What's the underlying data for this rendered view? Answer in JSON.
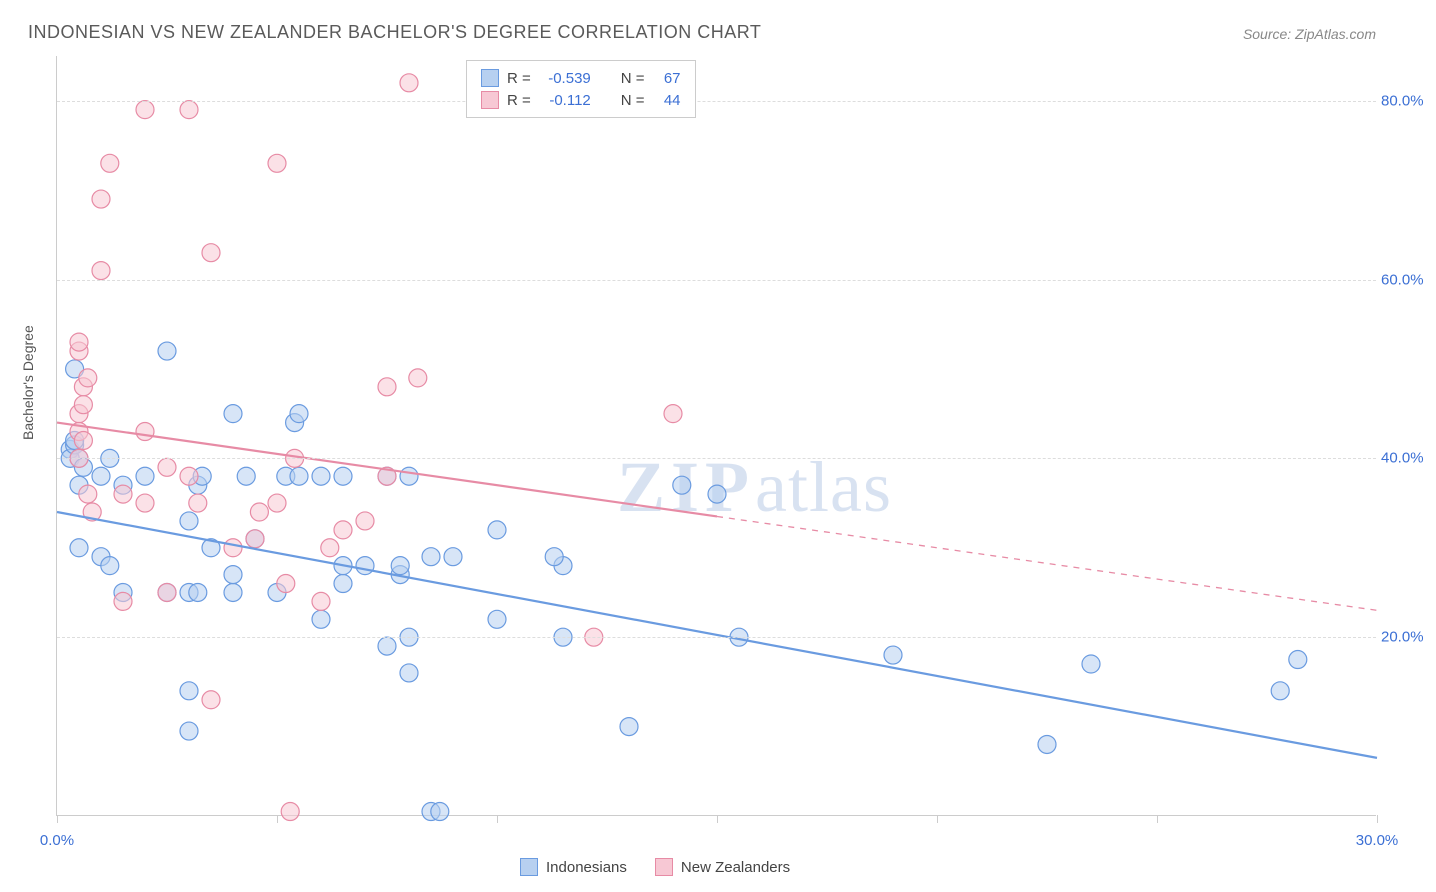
{
  "title": "INDONESIAN VS NEW ZEALANDER BACHELOR'S DEGREE CORRELATION CHART",
  "source": "Source: ZipAtlas.com",
  "watermark": {
    "zip": "ZIP",
    "atlas": "atlas"
  },
  "ylabel": "Bachelor's Degree",
  "chart": {
    "type": "scatter",
    "xlim": [
      0,
      30
    ],
    "ylim": [
      0,
      85
    ],
    "xticks": [
      0,
      5,
      10,
      15,
      20,
      25,
      30
    ],
    "xtick_labels": [
      "0.0%",
      "",
      "",
      "",
      "",
      "",
      "30.0%"
    ],
    "yticks": [
      20,
      40,
      60,
      80
    ],
    "ytick_labels": [
      "20.0%",
      "40.0%",
      "60.0%",
      "80.0%"
    ],
    "grid_color": "#dddddd",
    "axis_color": "#cccccc",
    "tick_label_color": "#3b6fd4",
    "background_color": "#ffffff",
    "marker_radius": 9,
    "marker_stroke_width": 1.2,
    "line_width": 2.2,
    "series": [
      {
        "name": "Indonesians",
        "color_fill": "#b7d0f0",
        "color_stroke": "#6a9be0",
        "fill_opacity": 0.55,
        "r": -0.539,
        "n": 67,
        "trend": {
          "x1": 0,
          "y1": 34,
          "x2": 30,
          "y2": 6.5,
          "solid_until_x": 30
        },
        "points": [
          [
            0.3,
            41
          ],
          [
            0.3,
            40
          ],
          [
            0.4,
            41.5
          ],
          [
            0.4,
            42
          ],
          [
            0.5,
            40
          ],
          [
            0.4,
            50
          ],
          [
            0.5,
            37
          ],
          [
            0.6,
            39
          ],
          [
            0.5,
            30
          ],
          [
            1.0,
            29
          ],
          [
            1.2,
            28
          ],
          [
            1.0,
            38
          ],
          [
            1.2,
            40
          ],
          [
            1.5,
            37
          ],
          [
            2.5,
            52
          ],
          [
            3.0,
            25
          ],
          [
            3.0,
            14
          ],
          [
            3.2,
            25
          ],
          [
            3.0,
            33
          ],
          [
            3.2,
            37
          ],
          [
            3.3,
            38
          ],
          [
            3.0,
            9.5
          ],
          [
            3.5,
            30
          ],
          [
            4.0,
            25
          ],
          [
            4.0,
            27
          ],
          [
            4.5,
            31
          ],
          [
            4.3,
            38
          ],
          [
            5.0,
            25
          ],
          [
            5.2,
            38
          ],
          [
            5.5,
            38
          ],
          [
            5.4,
            44
          ],
          [
            5.5,
            45
          ],
          [
            6.0,
            38
          ],
          [
            6.0,
            22
          ],
          [
            6.5,
            38
          ],
          [
            6.5,
            26
          ],
          [
            6.5,
            28
          ],
          [
            7.0,
            28
          ],
          [
            7.5,
            38
          ],
          [
            7.5,
            19
          ],
          [
            7.8,
            27
          ],
          [
            7.8,
            28
          ],
          [
            8.0,
            38
          ],
          [
            8.0,
            20
          ],
          [
            8.0,
            16
          ],
          [
            8.5,
            29
          ],
          [
            8.5,
            0.5
          ],
          [
            8.7,
            0.5
          ],
          [
            9.0,
            29
          ],
          [
            10.0,
            22
          ],
          [
            10.0,
            32
          ],
          [
            11.5,
            28
          ],
          [
            11.3,
            29
          ],
          [
            11.5,
            20
          ],
          [
            13.0,
            10
          ],
          [
            14.2,
            37
          ],
          [
            15.0,
            36
          ],
          [
            15.5,
            20
          ],
          [
            19.0,
            18
          ],
          [
            22.5,
            8
          ],
          [
            23.5,
            17
          ],
          [
            27.8,
            14
          ],
          [
            28.2,
            17.5
          ],
          [
            2.0,
            38
          ],
          [
            2.5,
            25
          ],
          [
            4.0,
            45
          ],
          [
            1.5,
            25
          ]
        ]
      },
      {
        "name": "New Zealanders",
        "color_fill": "#f7c8d4",
        "color_stroke": "#e78ba5",
        "fill_opacity": 0.55,
        "r": -0.112,
        "n": 44,
        "trend": {
          "x1": 0,
          "y1": 44,
          "x2": 30,
          "y2": 23,
          "solid_until_x": 15
        },
        "points": [
          [
            0.5,
            52
          ],
          [
            0.5,
            53
          ],
          [
            0.6,
            48
          ],
          [
            0.7,
            49
          ],
          [
            0.5,
            45
          ],
          [
            0.6,
            46
          ],
          [
            0.5,
            43
          ],
          [
            0.6,
            42
          ],
          [
            0.5,
            40
          ],
          [
            0.7,
            36
          ],
          [
            0.8,
            34
          ],
          [
            1.0,
            61
          ],
          [
            1.0,
            69
          ],
          [
            1.2,
            73
          ],
          [
            2.0,
            79
          ],
          [
            3.0,
            79
          ],
          [
            3.5,
            63
          ],
          [
            2.5,
            39
          ],
          [
            2.0,
            43
          ],
          [
            2.0,
            35
          ],
          [
            2.5,
            25
          ],
          [
            1.5,
            36
          ],
          [
            1.5,
            24
          ],
          [
            3.0,
            38
          ],
          [
            3.2,
            35
          ],
          [
            3.5,
            13
          ],
          [
            4.0,
            30
          ],
          [
            4.5,
            31
          ],
          [
            4.6,
            34
          ],
          [
            5.0,
            73
          ],
          [
            5.2,
            26
          ],
          [
            5.0,
            35
          ],
          [
            5.4,
            40
          ],
          [
            6.0,
            24
          ],
          [
            6.2,
            30
          ],
          [
            6.5,
            32
          ],
          [
            7.0,
            33
          ],
          [
            7.5,
            38
          ],
          [
            8.0,
            82
          ],
          [
            7.5,
            48
          ],
          [
            8.2,
            49
          ],
          [
            5.3,
            0.5
          ],
          [
            12.2,
            20
          ],
          [
            14.0,
            45
          ]
        ]
      }
    ]
  },
  "legend_top": {
    "rows": [
      {
        "swatch_fill": "#b7d0f0",
        "swatch_stroke": "#6a9be0",
        "r_label": "R =",
        "r_val": "-0.539",
        "n_label": "N =",
        "n_val": "67"
      },
      {
        "swatch_fill": "#f7c8d4",
        "swatch_stroke": "#e78ba5",
        "r_label": "R =",
        "r_val": "-0.112",
        "n_label": "N =",
        "n_val": "44"
      }
    ]
  },
  "legend_bottom": {
    "items": [
      {
        "swatch_fill": "#b7d0f0",
        "swatch_stroke": "#6a9be0",
        "label": "Indonesians"
      },
      {
        "swatch_fill": "#f7c8d4",
        "swatch_stroke": "#e78ba5",
        "label": "New Zealanders"
      }
    ]
  }
}
